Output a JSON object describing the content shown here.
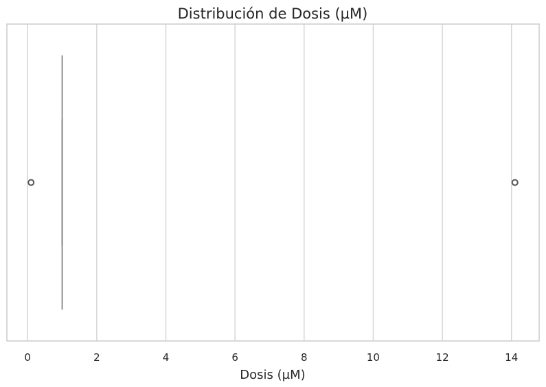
{
  "chart_data": {
    "type": "box",
    "title": "Distribución de Dosis (µM)",
    "xlabel": "Dosis (µM)",
    "ylabel": "",
    "orientation": "horizontal",
    "xlim": [
      -0.6,
      14.8
    ],
    "xticks": [
      0,
      2,
      4,
      6,
      8,
      10,
      12,
      14
    ],
    "tick_labels": [
      "0",
      "2",
      "4",
      "6",
      "8",
      "10",
      "12",
      "14"
    ],
    "grid": true,
    "box": {
      "whisker_low": 1.0,
      "q1": 1.0,
      "median": 1.0,
      "q3": 1.0,
      "whisker_high": 1.0
    },
    "outliers": [
      0.1,
      14.1
    ],
    "colors": {
      "box": "#808080",
      "outlier": "#555555",
      "grid": "#d6d6d6",
      "frame": "#cccccc",
      "text": "#262626"
    }
  }
}
